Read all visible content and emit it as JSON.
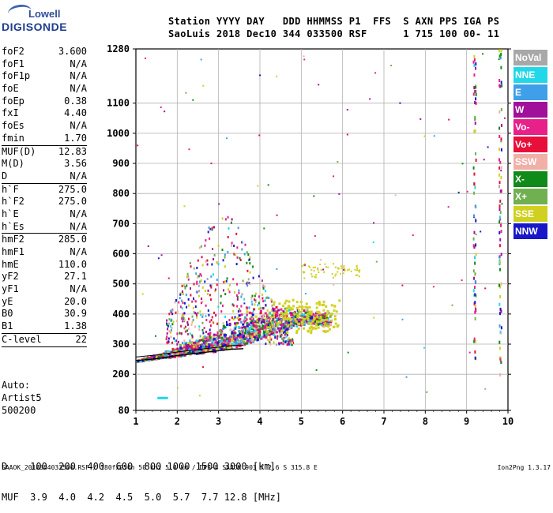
{
  "logo": {
    "line1": "Lowell",
    "line2": "DIGISONDE"
  },
  "header": {
    "line1": "Station YYYY DAY   DDD HHMMSS P1  FFS  S AXN PPS IGA PS",
    "line2": "SaoLuis 2018 Dec10 344 033500 RSF      1 715 100 00- 11"
  },
  "params": [
    {
      "name": "foF2",
      "value": "3.600"
    },
    {
      "name": "foF1",
      "value": "N/A"
    },
    {
      "name": "foF1p",
      "value": "N/A"
    },
    {
      "name": "foE",
      "value": "N/A"
    },
    {
      "name": "foEp",
      "value": "0.38"
    },
    {
      "name": "fxI",
      "value": "4.40"
    },
    {
      "name": "foEs",
      "value": "N/A"
    },
    {
      "name": "fmin",
      "value": "1.70",
      "sep": true
    },
    {
      "name": "MUF(D)",
      "value": "12.83"
    },
    {
      "name": "M(D)",
      "value": "3.56"
    },
    {
      "name": "D",
      "value": "N/A",
      "sep": true
    },
    {
      "name": "h`F",
      "value": "275.0"
    },
    {
      "name": "h`F2",
      "value": "275.0"
    },
    {
      "name": "h`E",
      "value": "N/A"
    },
    {
      "name": "h`Es",
      "value": "N/A",
      "sep": true
    },
    {
      "name": "hmF2",
      "value": "285.0"
    },
    {
      "name": "hmF1",
      "value": "N/A"
    },
    {
      "name": "hmE",
      "value": "110.0"
    },
    {
      "name": "yF2",
      "value": "27.1"
    },
    {
      "name": "yF1",
      "value": "N/A"
    },
    {
      "name": "yE",
      "value": "20.0"
    },
    {
      "name": "B0",
      "value": "30.9"
    },
    {
      "name": "B1",
      "value": "1.38",
      "sep": true
    },
    {
      "name": "C-level",
      "value": "22",
      "sep": true
    }
  ],
  "autoscale": {
    "line1": "Auto:",
    "line2": "Artist5",
    "line3": "500200"
  },
  "legend": [
    {
      "label": "NoVal",
      "color": "#a8a8a8"
    },
    {
      "label": "NNE",
      "color": "#22d8e8"
    },
    {
      "label": "E",
      "color": "#3f9fe8"
    },
    {
      "label": "W",
      "color": "#a0109a"
    },
    {
      "label": "Vo-",
      "color": "#e8208a"
    },
    {
      "label": "Vo+",
      "color": "#e8103a"
    },
    {
      "label": "SSW",
      "color": "#f0b0a8"
    },
    {
      "label": "X-",
      "color": "#108a18"
    },
    {
      "label": "X+",
      "color": "#70b050"
    },
    {
      "label": "SSE",
      "color": "#d0d020"
    },
    {
      "label": "NNW",
      "color": "#1818c8"
    }
  ],
  "muf_table": {
    "row1": "D    100  200  400  600  800 1000 1500 3000 [km]",
    "row2": "MUF  3.9  4.0  4.2  4.5  5.0  5.7  7.7 12.8 [MHz]"
  },
  "footer": "SAAOK_2018344033500.RSF / 180fx256h 50 kHz 5.0 km / DPS-4 SAAOK 903 / 2.6 S 315.8 E",
  "version": "Ion2Png 1.3.17",
  "chart_data": {
    "type": "scatter",
    "x_ticks": [
      1,
      2,
      3,
      4,
      5,
      6,
      7,
      8,
      9,
      10
    ],
    "y_ticks": [
      80,
      200,
      300,
      400,
      500,
      600,
      700,
      800,
      900,
      1000,
      1100,
      1280
    ],
    "xlim": [
      1,
      10
    ],
    "ylim": [
      80,
      1280
    ],
    "grid": true,
    "profile_curve": {
      "x": [
        1.0,
        1.5,
        2.0,
        2.5,
        3.0,
        3.3,
        3.6
      ],
      "y": [
        245,
        252,
        262,
        270,
        278,
        283,
        285
      ]
    },
    "trace_band": {
      "x": [
        1.0,
        1.5,
        2.0,
        2.5,
        3.0,
        3.3,
        3.6,
        4.0,
        4.4,
        4.8,
        5.2,
        5.6
      ],
      "y_low": [
        245,
        255,
        262,
        272,
        280,
        290,
        300,
        320,
        340,
        360,
        370,
        365
      ],
      "y_high": [
        250,
        270,
        300,
        330,
        360,
        390,
        420,
        440,
        440,
        430,
        420,
        410
      ]
    }
  }
}
